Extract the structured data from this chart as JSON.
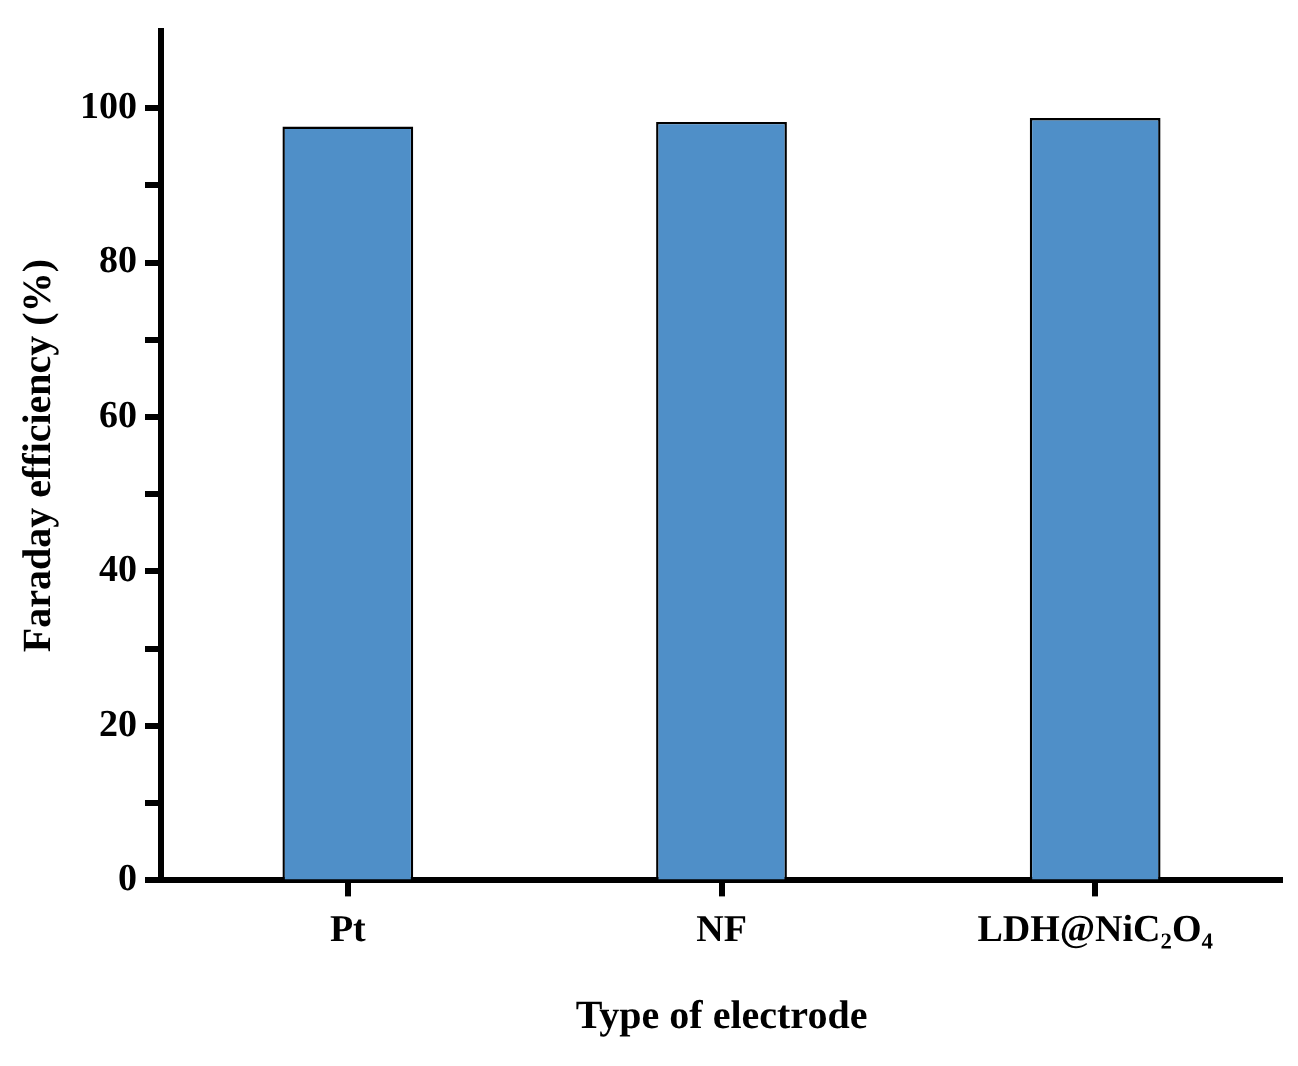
{
  "chart_data": {
    "type": "bar",
    "xlabel": "Type of electrode",
    "ylabel": "Faraday efficiency (%)",
    "categories": [
      "Pt",
      "NF",
      "LDH@NiC₂O₄"
    ],
    "values": [
      97.6,
      98.2,
      98.7
    ],
    "color": "#4f8fc8",
    "ylim": [
      0,
      110
    ],
    "yticks": [
      0,
      {
        "value": 10,
        "label": null
      },
      20,
      {
        "value": 30,
        "label": null
      },
      40,
      {
        "value": 50,
        "label": null
      },
      60,
      {
        "value": 70,
        "label": null
      },
      80,
      {
        "value": 90,
        "label": null
      },
      100
    ],
    "grid": false,
    "legend": false
  }
}
